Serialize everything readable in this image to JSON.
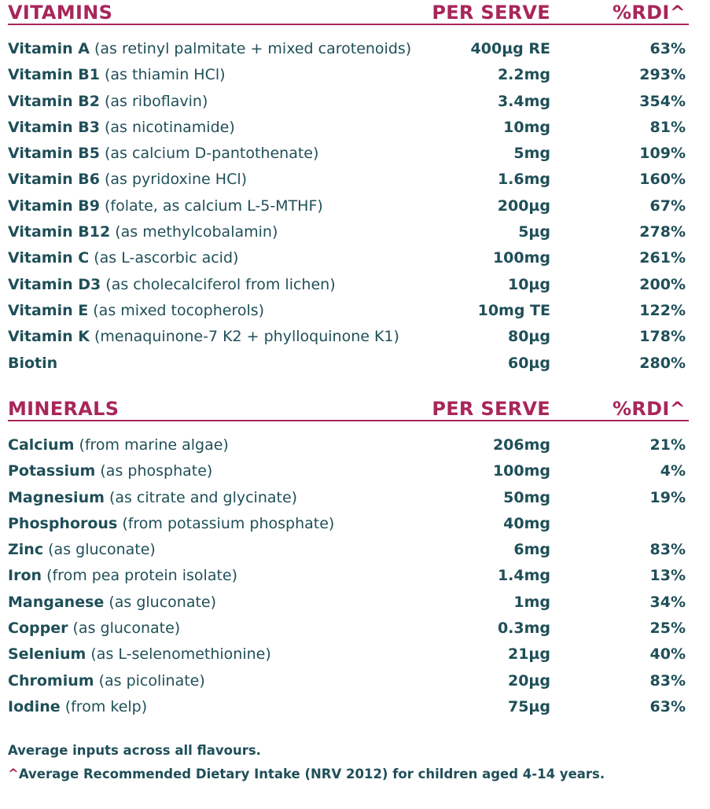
{
  "vitamins": {
    "title": "VITAMINS",
    "per_serve": "PER SERVE",
    "rdi": "%RDI^",
    "rows": [
      {
        "name": "Vitamin A",
        "desc": "(as retinyl palmitate + mixed carotenoids)",
        "serve": "400µg RE",
        "rdi": "63%"
      },
      {
        "name": "Vitamin B1",
        "desc": "(as thiamin HCl)",
        "serve": "2.2mg",
        "rdi": "293%"
      },
      {
        "name": "Vitamin B2",
        "desc": "(as riboflavin)",
        "serve": "3.4mg",
        "rdi": "354%"
      },
      {
        "name": "Vitamin B3",
        "desc": "(as nicotinamide)",
        "serve": "10mg",
        "rdi": "81%"
      },
      {
        "name": "Vitamin B5",
        "desc": "(as calcium D-pantothenate)",
        "serve": "5mg",
        "rdi": "109%"
      },
      {
        "name": "Vitamin B6",
        "desc": "(as pyridoxine HCl)",
        "serve": "1.6mg",
        "rdi": "160%"
      },
      {
        "name": "Vitamin B9",
        "desc": "(folate, as calcium L-5-MTHF)",
        "serve": "200µg",
        "rdi": "67%"
      },
      {
        "name": "Vitamin B12",
        "desc": "(as methylcobalamin)",
        "serve": "5µg",
        "rdi": "278%"
      },
      {
        "name": "Vitamin C",
        "desc": "(as L-ascorbic acid)",
        "serve": "100mg",
        "rdi": "261%"
      },
      {
        "name": "Vitamin D3",
        "desc": "(as cholecalciferol from lichen)",
        "serve": "10µg",
        "rdi": "200%"
      },
      {
        "name": "Vitamin E",
        "desc": "(as mixed tocopherols)",
        "serve": "10mg TE",
        "rdi": "122%"
      },
      {
        "name": "Vitamin K",
        "desc": "(menaquinone-7 K2 + phylloquinone K1)",
        "serve": "80µg",
        "rdi": "178%"
      },
      {
        "name": "Biotin",
        "desc": "",
        "serve": "60µg",
        "rdi": "280%"
      }
    ]
  },
  "minerals": {
    "title": "MINERALS",
    "per_serve": "PER SERVE",
    "rdi": "%RDI^",
    "rows": [
      {
        "name": "Calcium",
        "desc": "(from marine algae)",
        "serve": "206mg",
        "rdi": "21%"
      },
      {
        "name": "Potassium",
        "desc": "(as phosphate)",
        "serve": "100mg",
        "rdi": "4%"
      },
      {
        "name": "Magnesium",
        "desc": "(as citrate and glycinate)",
        "serve": "50mg",
        "rdi": "19%"
      },
      {
        "name": "Phosphorous",
        "desc": "(from potassium phosphate)",
        "serve": "40mg",
        "rdi": ""
      },
      {
        "name": "Zinc",
        "desc": "(as gluconate)",
        "serve": "6mg",
        "rdi": "83%"
      },
      {
        "name": "Iron",
        "desc": "(from pea protein isolate)",
        "serve": "1.4mg",
        "rdi": "13%"
      },
      {
        "name": "Manganese",
        "desc": "(as gluconate)",
        "serve": "1mg",
        "rdi": "34%"
      },
      {
        "name": "Copper",
        "desc": "(as gluconate)",
        "serve": "0.3mg",
        "rdi": "25%"
      },
      {
        "name": "Selenium",
        "desc": "(as L-selenomethionine)",
        "serve": "21µg",
        "rdi": "40%"
      },
      {
        "name": "Chromium",
        "desc": "(as picolinate)",
        "serve": "20µg",
        "rdi": "83%"
      },
      {
        "name": "Iodine",
        "desc": "(from kelp)",
        "serve": "75µg",
        "rdi": "63%"
      }
    ]
  },
  "footer": {
    "note": "Average inputs across all flavours.",
    "caret": "^",
    "rdi_note": "Average Recommended Dietary Intake (NRV 2012) for children aged 4-14 years."
  },
  "colors": {
    "accent": "#a8265a",
    "text": "#1f4f58"
  }
}
